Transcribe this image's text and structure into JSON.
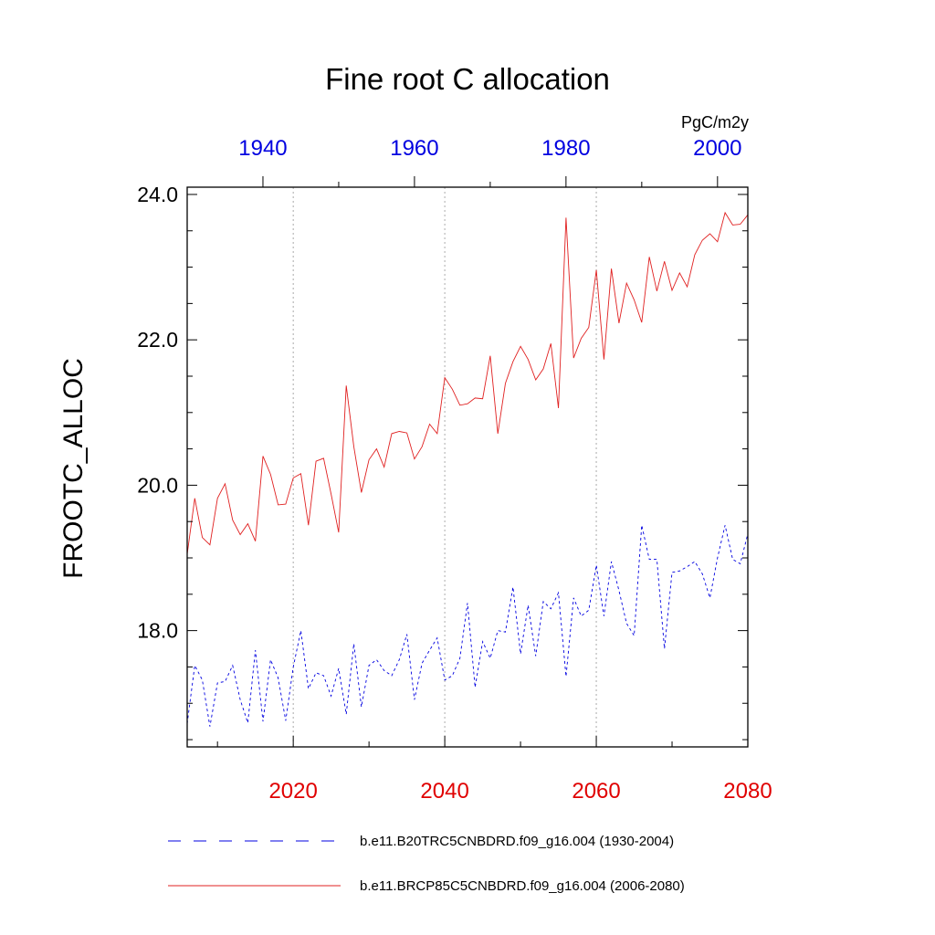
{
  "chart_data": {
    "type": "line",
    "title": "Fine root C allocation",
    "units": "PgC/m2y",
    "ylabel": "FROOTC_ALLOC",
    "ylim": [
      16.4,
      24.1
    ],
    "yticks": [
      18.0,
      20.0,
      22.0,
      24.0
    ],
    "ytick_labels": [
      "18.0",
      "20.0",
      "22.0",
      "24.0"
    ],
    "bottom_axis": {
      "range": [
        2006,
        2080
      ],
      "ticks": [
        2020,
        2040,
        2060,
        2080
      ],
      "tick_labels": [
        "2020",
        "2040",
        "2060",
        "2080"
      ],
      "color": "#e00000"
    },
    "top_axis": {
      "range": [
        1930,
        2004
      ],
      "ticks": [
        1940,
        1960,
        1980,
        2000
      ],
      "tick_labels": [
        "1940",
        "1960",
        "1980",
        "2000"
      ],
      "color": "#0000e0"
    },
    "grid": "vertical dotted at major bottom ticks",
    "legend_position": "bottom",
    "series": [
      {
        "name": "b.e11.BRCP85C5CNBDRD.f09_g16.004 (2006-2080)",
        "axis": "bottom",
        "color": "#e02020",
        "dash": "solid",
        "x_start": 2006,
        "values": [
          19.05,
          19.82,
          19.28,
          19.18,
          19.82,
          20.02,
          19.52,
          19.32,
          19.47,
          19.23,
          20.4,
          20.15,
          19.73,
          19.74,
          20.1,
          20.16,
          19.45,
          20.33,
          20.37,
          19.88,
          19.35,
          21.37,
          20.53,
          19.9,
          20.35,
          20.5,
          20.25,
          20.71,
          20.74,
          20.72,
          20.36,
          20.53,
          20.84,
          20.71,
          21.48,
          21.32,
          21.1,
          21.12,
          21.2,
          21.19,
          21.78,
          20.71,
          21.4,
          21.7,
          21.91,
          21.73,
          21.45,
          21.6,
          21.95,
          21.06,
          23.68,
          21.75,
          22.02,
          22.17,
          22.96,
          21.73,
          22.98,
          22.23,
          22.78,
          22.55,
          22.24,
          23.14,
          22.67,
          23.08,
          22.68,
          22.92,
          22.73,
          23.17,
          23.37,
          23.46,
          23.35,
          23.75,
          23.58,
          23.59,
          23.72
        ]
      },
      {
        "name": "b.e11.B20TRC5CNBDRD.f09_g16.004 (1930-2004)",
        "axis": "top",
        "color": "#0000e0",
        "dash": "dashed",
        "x_start": 1930,
        "values": [
          16.72,
          17.52,
          17.32,
          16.68,
          17.28,
          17.3,
          17.52,
          17.05,
          16.73,
          17.73,
          16.75,
          17.6,
          17.35,
          16.76,
          17.5,
          18.0,
          17.2,
          17.42,
          17.38,
          17.1,
          17.48,
          16.85,
          17.82,
          16.95,
          17.52,
          17.6,
          17.45,
          17.38,
          17.6,
          17.95,
          17.05,
          17.55,
          17.73,
          17.9,
          17.32,
          17.38,
          17.62,
          18.38,
          17.22,
          17.85,
          17.62,
          18.0,
          17.98,
          18.6,
          17.68,
          18.35,
          17.65,
          18.4,
          18.3,
          18.52,
          17.37,
          18.45,
          18.2,
          18.28,
          18.9,
          18.2,
          18.95,
          18.55,
          18.1,
          17.93,
          19.45,
          18.98,
          18.98,
          17.75,
          18.8,
          18.82,
          18.88,
          18.95,
          18.78,
          18.45,
          19.0,
          19.45,
          18.98,
          18.92,
          19.33
        ]
      }
    ]
  }
}
